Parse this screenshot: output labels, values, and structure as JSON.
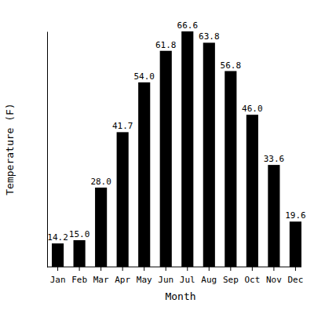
{
  "chart_data": {
    "type": "bar",
    "x_label": "Month",
    "y_label": "Temperature (F)",
    "categories": [
      "Jan",
      "Feb",
      "Mar",
      "Apr",
      "May",
      "Jun",
      "Jul",
      "Aug",
      "Sep",
      "Oct",
      "Nov",
      "Dec"
    ],
    "values": [
      14.2,
      15.0,
      28.0,
      41.7,
      54.0,
      61.8,
      66.6,
      63.8,
      56.8,
      46.0,
      33.6,
      19.6
    ],
    "value_labels": [
      "14.2",
      "15.0",
      "28.0",
      "41.7",
      "54.0",
      "61.8",
      "66.6",
      "63.8",
      "56.8",
      "46.0",
      "33.6",
      "19.6"
    ],
    "color": "#000000",
    "ylim": [
      8.4,
      66.6
    ],
    "data_labels": true,
    "tick_labels": "x",
    "grid": false
  }
}
